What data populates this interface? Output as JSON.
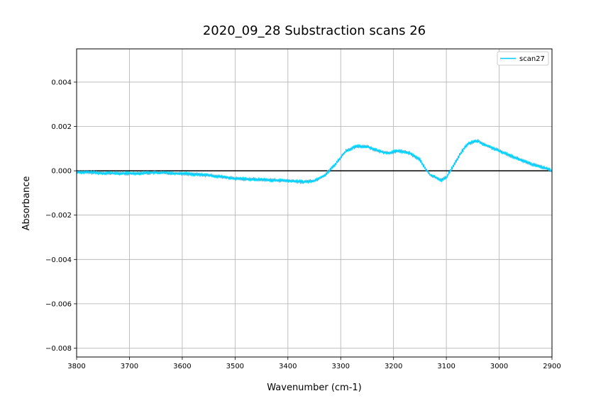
{
  "chart_data": {
    "type": "line",
    "title": "2020_09_28 Substraction scans 26",
    "xlabel": "Wavenumber (cm-1)",
    "ylabel": "Absorbance",
    "xlim": [
      3800,
      2900
    ],
    "ylim": [
      -0.0084,
      0.0055
    ],
    "x_reversed": true,
    "grid": true,
    "legend_position": "top-right",
    "x_ticks": [
      3800,
      3700,
      3600,
      3500,
      3400,
      3300,
      3200,
      3100,
      3000,
      2900
    ],
    "x_tick_labels": [
      "3800",
      "3700",
      "3600",
      "3500",
      "3400",
      "3300",
      "3200",
      "3100",
      "3000",
      "2900"
    ],
    "y_ticks": [
      0.004,
      0.002,
      0.0,
      -0.002,
      -0.004,
      -0.006,
      -0.008
    ],
    "y_tick_labels": [
      "0.004",
      "0.002",
      "0.000",
      "−0.002",
      "−0.004",
      "−0.006",
      "−0.008"
    ],
    "zero_line": {
      "y": 0.0,
      "color": "#000000"
    },
    "series": [
      {
        "name": "scan27",
        "color": "#00ccff",
        "noise_amplitude": 8e-05,
        "x": [
          3800,
          3750,
          3700,
          3650,
          3600,
          3550,
          3500,
          3450,
          3400,
          3370,
          3350,
          3330,
          3310,
          3300,
          3290,
          3270,
          3250,
          3230,
          3210,
          3190,
          3170,
          3150,
          3140,
          3130,
          3120,
          3110,
          3100,
          3090,
          3080,
          3070,
          3060,
          3050,
          3040,
          3030,
          3020,
          3010,
          3000,
          2980,
          2960,
          2940,
          2920,
          2900
        ],
        "y": [
          -5e-05,
          -0.0001,
          -0.00012,
          -8e-05,
          -0.00012,
          -0.0002,
          -0.00035,
          -0.0004,
          -0.00045,
          -0.0005,
          -0.00045,
          -0.0002,
          0.0003,
          0.0006,
          0.0009,
          0.0011,
          0.0011,
          0.0009,
          0.0008,
          0.0009,
          0.0008,
          0.0005,
          0.0001,
          -0.0002,
          -0.0003,
          -0.00042,
          -0.0003,
          0.0001,
          0.0005,
          0.0009,
          0.0012,
          0.0013,
          0.00135,
          0.0012,
          0.0011,
          0.001,
          0.0009,
          0.0007,
          0.0005,
          0.0003,
          0.00018,
          0.0
        ]
      }
    ]
  }
}
